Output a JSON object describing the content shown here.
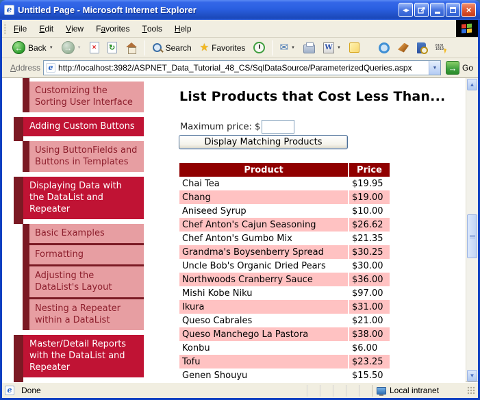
{
  "window": {
    "title": "Untitled Page - Microsoft Internet Explorer"
  },
  "menu": {
    "items": [
      {
        "label": "File",
        "accel": 0
      },
      {
        "label": "Edit",
        "accel": 0
      },
      {
        "label": "View",
        "accel": 0
      },
      {
        "label": "Favorites",
        "accel": 1
      },
      {
        "label": "Tools",
        "accel": 0
      },
      {
        "label": "Help",
        "accel": 0
      }
    ]
  },
  "toolbar": {
    "back_label": "Back",
    "search_label": "Search",
    "favorites_label": "Favorites"
  },
  "address": {
    "label": "Address",
    "accel": 0,
    "url": "http://localhost:3982/ASPNET_Data_Tutorial_48_CS/SqlDataSource/ParameterizedQueries.aspx",
    "go_label": "Go"
  },
  "sidebar": {
    "items": [
      {
        "label": "Customizing the Sorting User Interface",
        "level": "sub"
      },
      {
        "label": "Adding Custom Buttons",
        "level": "top"
      },
      {
        "label": "Using ButtonFields and Buttons in Templates",
        "level": "sub"
      },
      {
        "label": "Displaying Data with the DataList and Repeater",
        "level": "top"
      },
      {
        "label": "Basic Examples",
        "level": "sub"
      },
      {
        "label": "Formatting",
        "level": "sub"
      },
      {
        "label": "Adjusting the DataList's Layout",
        "level": "sub"
      },
      {
        "label": "Nesting a Repeater within a DataList",
        "level": "sub"
      },
      {
        "label": "Master/Detail Reports with the DataList and Repeater",
        "level": "top"
      }
    ]
  },
  "main": {
    "heading": "List Products that Cost Less Than...",
    "max_price_label": "Maximum price: $",
    "max_price_value": "",
    "submit_button": "Display Matching Products",
    "table": {
      "headers": [
        "Product",
        "Price"
      ],
      "rows": [
        [
          "Chai Tea",
          "$19.95"
        ],
        [
          "Chang",
          "$19.00"
        ],
        [
          "Aniseed Syrup",
          "$10.00"
        ],
        [
          "Chef Anton's Cajun Seasoning",
          "$26.62"
        ],
        [
          "Chef Anton's Gumbo Mix",
          "$21.35"
        ],
        [
          "Grandma's Boysenberry Spread",
          "$30.25"
        ],
        [
          "Uncle Bob's Organic Dried Pears",
          "$30.00"
        ],
        [
          "Northwoods Cranberry Sauce",
          "$36.00"
        ],
        [
          "Mishi Kobe Niku",
          "$97.00"
        ],
        [
          "Ikura",
          "$31.00"
        ],
        [
          "Queso Cabrales",
          "$21.00"
        ],
        [
          "Queso Manchego La Pastora",
          "$38.00"
        ],
        [
          "Konbu",
          "$6.00"
        ],
        [
          "Tofu",
          "$23.25"
        ],
        [
          "Genen Shouyu",
          "$15.50"
        ]
      ]
    }
  },
  "status": {
    "left": "Done",
    "right": "Local intranet"
  },
  "colors": {
    "table_header": "#900000",
    "table_row_alt": "#ffc2c2",
    "sidebar_selected": "#c01334",
    "sidebar_item": "#e79ea2",
    "sidebar_accent": "#7b1a24",
    "titlebar_blue": "#2a5fe0"
  }
}
